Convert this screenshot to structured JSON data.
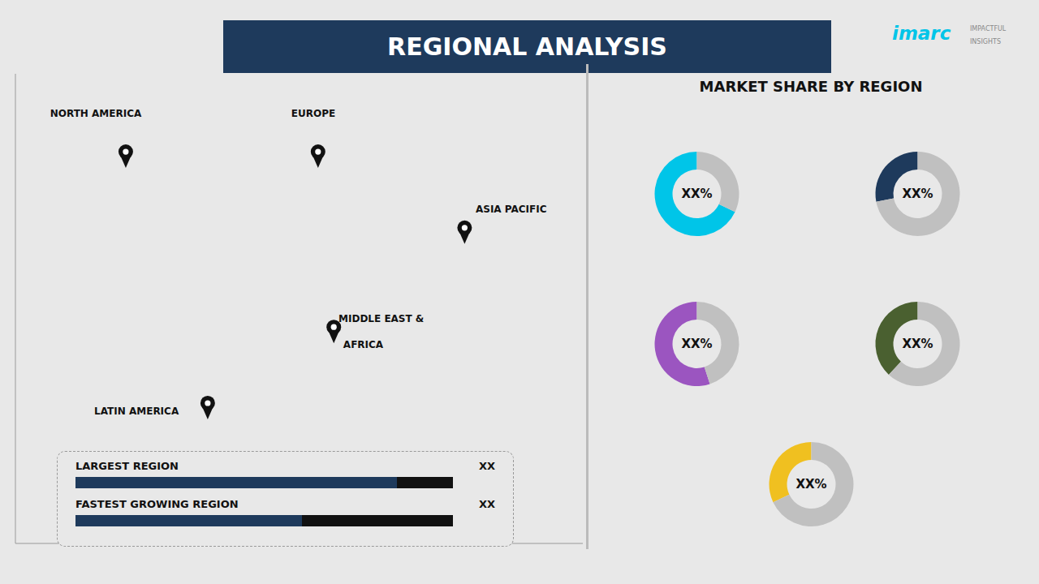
{
  "title": "REGIONAL ANALYSIS",
  "background": "#e8e8e8",
  "title_background": "#1e3a5c",
  "title_color": "#ffffff",
  "annotations": [
    {
      "text": "imarc",
      "color": "#00c5e8"
    },
    {
      "text": "IMPACTFUL",
      "color": "#888888"
    },
    {
      "text": "INSIGHTS",
      "color": "#888888"
    }
  ],
  "chart_data": [
    {
      "type": "scatter",
      "x": [
        -110,
        12,
        105,
        22,
        -58
      ],
      "y": [
        58,
        58,
        35,
        5,
        -18
      ],
      "xlim": [
        -180,
        180
      ],
      "ylim": [
        -57,
        85
      ],
      "color": "#111111",
      "marker": "pin",
      "grid": false,
      "tick_labels": false,
      "annotations": [
        {
          "text": "NORTH AMERICA",
          "x": -158,
          "y": 72
        },
        {
          "text": "EUROPE",
          "x": -5,
          "y": 72
        },
        {
          "text": "ASIA PACIFIC",
          "x": 112,
          "y": 43
        },
        {
          "text": "MIDDLE EAST &",
          "x": 25,
          "y": 10
        },
        {
          "text": "AFRICA",
          "x": 28,
          "y": 2
        },
        {
          "text": "LATIN AMERICA",
          "x": -130,
          "y": -18
        }
      ],
      "legend_box": {
        "rows": [
          {
            "label": "LARGEST REGION",
            "value_label": "XX"
          },
          {
            "label": "FASTEST GROWING REGION",
            "value_label": "XX"
          }
        ],
        "colors": [
          "#1e3a5c",
          "#111111"
        ]
      }
    },
    {
      "type": "pie",
      "title": "MARKET SHARE BY REGION",
      "series": [
        {
          "values": [
            68,
            32
          ],
          "colors": [
            "#00c5e8",
            "#c0c0c0"
          ],
          "annotation": "XX%"
        },
        {
          "values": [
            28,
            72
          ],
          "colors": [
            "#1e3a5c",
            "#c0c0c0"
          ],
          "annotation": "XX%"
        },
        {
          "values": [
            55,
            45
          ],
          "colors": [
            "#9b55c0",
            "#c0c0c0"
          ],
          "annotation": "XX%"
        },
        {
          "values": [
            38,
            62
          ],
          "colors": [
            "#4a6030",
            "#c0c0c0"
          ],
          "annotation": "XX%"
        },
        {
          "values": [
            32,
            68
          ],
          "colors": [
            "#f0c020",
            "#c0c0c0"
          ],
          "annotation": "XX%"
        }
      ]
    }
  ]
}
